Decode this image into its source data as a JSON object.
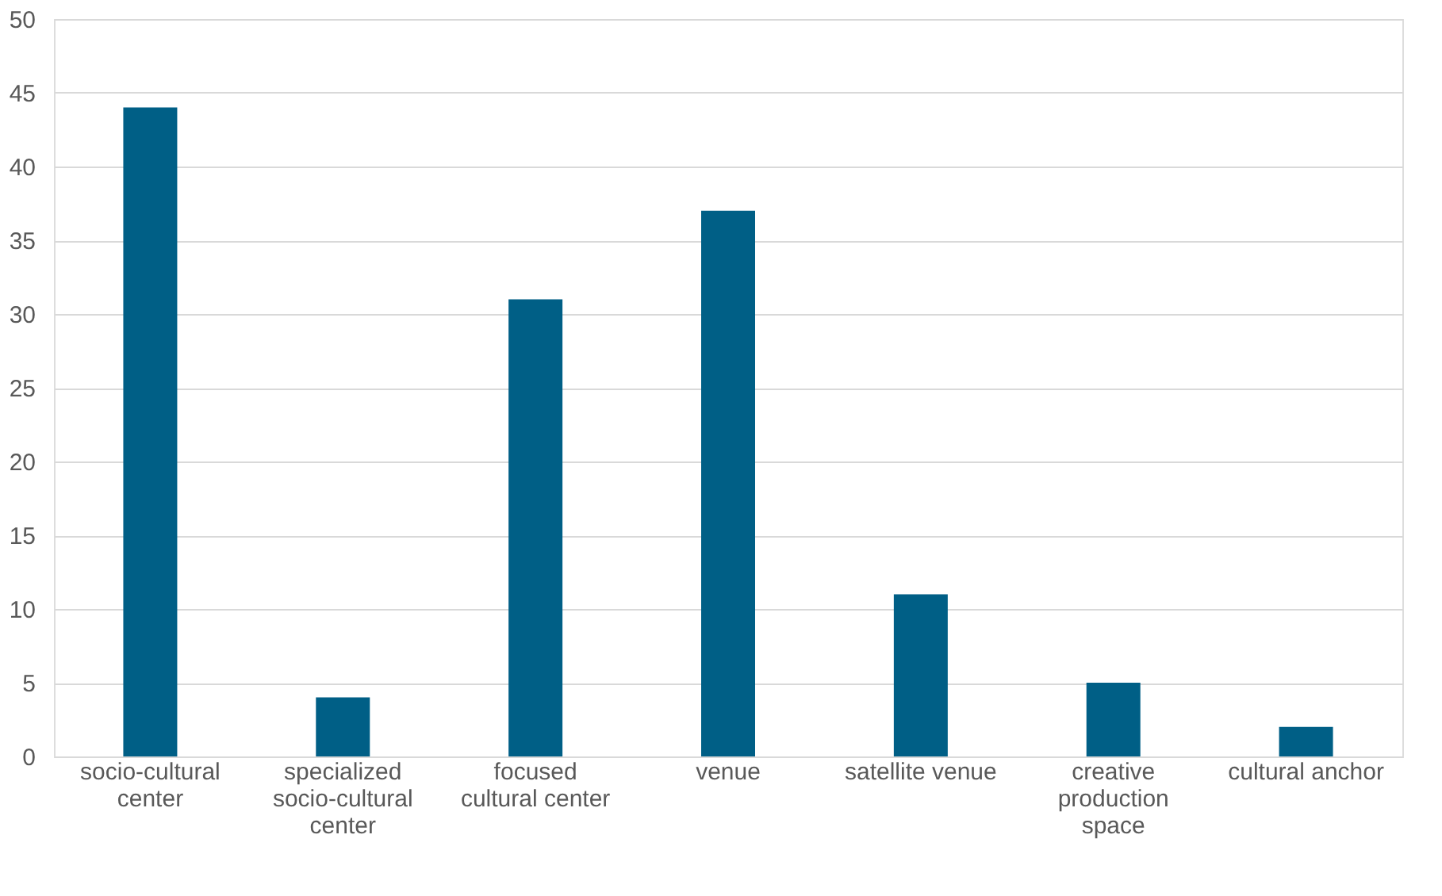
{
  "chart_data": {
    "type": "bar",
    "categories": [
      "socio-cultural center",
      "specialized socio-cultural center",
      "focused cultural center",
      "venue",
      "satellite venue",
      "creative production space",
      "cultural anchor"
    ],
    "values": [
      44,
      4,
      31,
      37,
      11,
      5,
      2
    ],
    "color": "#005f86",
    "ylim": [
      0,
      50
    ],
    "yticks": [
      0,
      5,
      10,
      15,
      20,
      25,
      30,
      35,
      40,
      45,
      50
    ],
    "grid": "y"
  }
}
